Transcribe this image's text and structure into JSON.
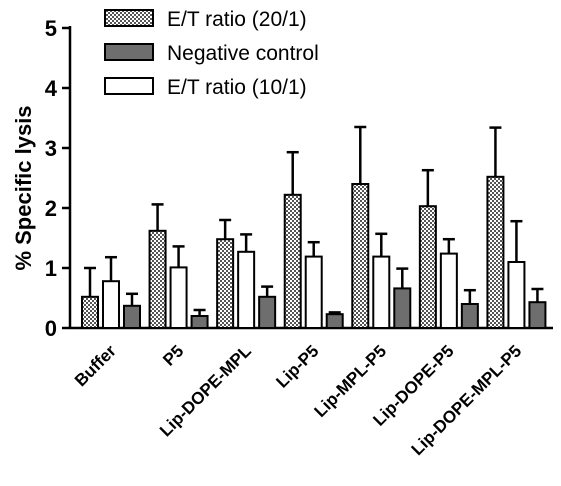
{
  "chart_data": {
    "type": "bar",
    "title": "",
    "xlabel": "",
    "ylabel": "% Specific lysis",
    "ylim": [
      0,
      5
    ],
    "yticks": [
      0,
      1,
      2,
      3,
      4,
      5
    ],
    "legend_position": "top",
    "grid": false,
    "categories": [
      "Buffer",
      "P5",
      "Lip-DOPE-MPL",
      "Lip-P5",
      "Lip-MPL-P5",
      "Lip-DOPE-P5",
      "Lip-DOPE-MPL-P5"
    ],
    "series": [
      {
        "name": "E/T ratio (20/1)",
        "pattern": "checkered",
        "color": "#888888",
        "values": [
          0.52,
          1.62,
          1.48,
          2.22,
          2.4,
          2.03,
          2.52
        ],
        "error": [
          0.48,
          0.44,
          0.32,
          0.71,
          0.95,
          0.6,
          0.82
        ]
      },
      {
        "name": "E/T ratio (10/1)",
        "pattern": "open",
        "color": "#ffffff",
        "values": [
          0.78,
          1.01,
          1.27,
          1.19,
          1.19,
          1.24,
          1.1
        ],
        "error": [
          0.4,
          0.35,
          0.29,
          0.24,
          0.38,
          0.24,
          0.68
        ]
      },
      {
        "name": "Negative control",
        "pattern": "solid",
        "color": "#6e6e6e",
        "values": [
          0.37,
          0.2,
          0.52,
          0.23,
          0.66,
          0.4,
          0.43
        ],
        "error": [
          0.2,
          0.1,
          0.17,
          0.03,
          0.33,
          0.23,
          0.22
        ]
      }
    ]
  },
  "legend": {
    "items": [
      {
        "label": "E/T ratio (20/1)",
        "pattern": "checkered"
      },
      {
        "label": "Negative control",
        "pattern": "solid"
      },
      {
        "label": "E/T ratio (10/1)",
        "pattern": "open"
      }
    ]
  }
}
